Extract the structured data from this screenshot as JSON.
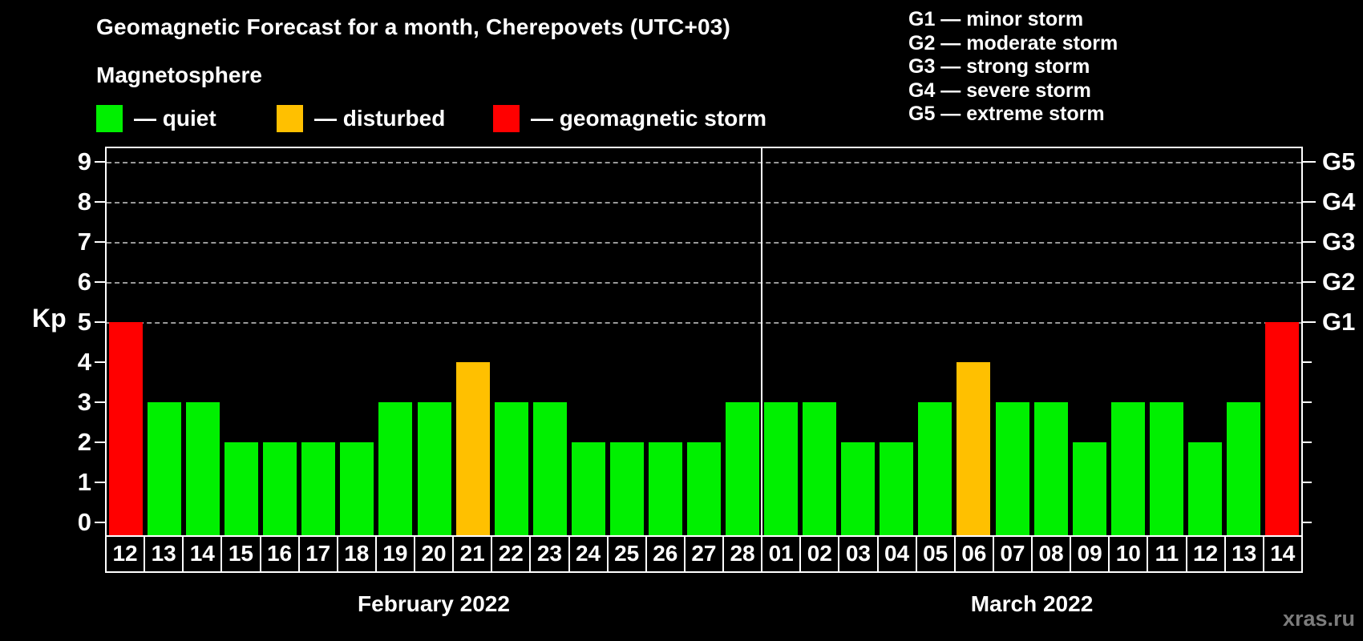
{
  "title": "Geomagnetic Forecast for a month, Cherepovets (UTC+03)",
  "subtitle": "Magnetosphere",
  "legend": {
    "items": [
      {
        "status": "quiet",
        "label": "— quiet",
        "color": "#00F000"
      },
      {
        "status": "disturbed",
        "label": "— disturbed",
        "color": "#FFC000"
      },
      {
        "status": "storm",
        "label": "— geomagnetic storm",
        "color": "#FF0000"
      }
    ]
  },
  "g_legend": {
    "lines": [
      "G1 — minor storm",
      "G2 — moderate storm",
      "G3 — strong storm",
      "G4 — severe storm",
      "G5 — extreme storm"
    ]
  },
  "axes": {
    "y_label": "Kp",
    "y_ticks": [
      0,
      1,
      2,
      3,
      4,
      5,
      6,
      7,
      8,
      9
    ],
    "g_levels": [
      {
        "kp": 5,
        "label": "G1"
      },
      {
        "kp": 6,
        "label": "G2"
      },
      {
        "kp": 7,
        "label": "G3"
      },
      {
        "kp": 8,
        "label": "G4"
      },
      {
        "kp": 9,
        "label": "G5"
      }
    ]
  },
  "months": [
    {
      "label": "February 2022",
      "days": 17
    },
    {
      "label": "March 2022",
      "days": 14
    }
  ],
  "status_colors": {
    "quiet": "#00F000",
    "disturbed": "#FFC000",
    "storm": "#FF0000"
  },
  "watermark": "xras.ru",
  "chart_data": {
    "type": "bar",
    "title": "Geomagnetic Forecast for a month, Cherepovets (UTC+03)",
    "ylabel": "Kp",
    "ylim": [
      0,
      9.4
    ],
    "grid": "dashed horizontal at Kp 5-9 (G1-G5)",
    "categories": [
      "Feb 12",
      "Feb 13",
      "Feb 14",
      "Feb 15",
      "Feb 16",
      "Feb 17",
      "Feb 18",
      "Feb 19",
      "Feb 20",
      "Feb 21",
      "Feb 22",
      "Feb 23",
      "Feb 24",
      "Feb 25",
      "Feb 26",
      "Feb 27",
      "Feb 28",
      "Mar 01",
      "Mar 02",
      "Mar 03",
      "Mar 04",
      "Mar 05",
      "Mar 06",
      "Mar 07",
      "Mar 08",
      "Mar 09",
      "Mar 10",
      "Mar 11",
      "Mar 12",
      "Mar 13",
      "Mar 14"
    ],
    "values": [
      5,
      3,
      3,
      2,
      2,
      2,
      2,
      3,
      3,
      4,
      3,
      3,
      2,
      2,
      2,
      2,
      3,
      3,
      3,
      2,
      2,
      3,
      4,
      3,
      3,
      2,
      3,
      3,
      2,
      3,
      5
    ],
    "bars": [
      {
        "day": "12",
        "kp": 5,
        "status": "storm"
      },
      {
        "day": "13",
        "kp": 3,
        "status": "quiet"
      },
      {
        "day": "14",
        "kp": 3,
        "status": "quiet"
      },
      {
        "day": "15",
        "kp": 2,
        "status": "quiet"
      },
      {
        "day": "16",
        "kp": 2,
        "status": "quiet"
      },
      {
        "day": "17",
        "kp": 2,
        "status": "quiet"
      },
      {
        "day": "18",
        "kp": 2,
        "status": "quiet"
      },
      {
        "day": "19",
        "kp": 3,
        "status": "quiet"
      },
      {
        "day": "20",
        "kp": 3,
        "status": "quiet"
      },
      {
        "day": "21",
        "kp": 4,
        "status": "disturbed"
      },
      {
        "day": "22",
        "kp": 3,
        "status": "quiet"
      },
      {
        "day": "23",
        "kp": 3,
        "status": "quiet"
      },
      {
        "day": "24",
        "kp": 2,
        "status": "quiet"
      },
      {
        "day": "25",
        "kp": 2,
        "status": "quiet"
      },
      {
        "day": "26",
        "kp": 2,
        "status": "quiet"
      },
      {
        "day": "27",
        "kp": 2,
        "status": "quiet"
      },
      {
        "day": "28",
        "kp": 3,
        "status": "quiet"
      },
      {
        "day": "01",
        "kp": 3,
        "status": "quiet"
      },
      {
        "day": "02",
        "kp": 3,
        "status": "quiet"
      },
      {
        "day": "03",
        "kp": 2,
        "status": "quiet"
      },
      {
        "day": "04",
        "kp": 2,
        "status": "quiet"
      },
      {
        "day": "05",
        "kp": 3,
        "status": "quiet"
      },
      {
        "day": "06",
        "kp": 4,
        "status": "disturbed"
      },
      {
        "day": "07",
        "kp": 3,
        "status": "quiet"
      },
      {
        "day": "08",
        "kp": 3,
        "status": "quiet"
      },
      {
        "day": "09",
        "kp": 2,
        "status": "quiet"
      },
      {
        "day": "10",
        "kp": 3,
        "status": "quiet"
      },
      {
        "day": "11",
        "kp": 3,
        "status": "quiet"
      },
      {
        "day": "12",
        "kp": 2,
        "status": "quiet"
      },
      {
        "day": "13",
        "kp": 3,
        "status": "quiet"
      },
      {
        "day": "14",
        "kp": 5,
        "status": "storm"
      }
    ]
  }
}
